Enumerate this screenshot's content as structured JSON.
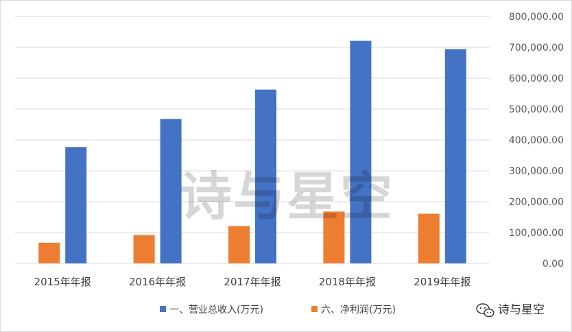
{
  "chart_data": {
    "type": "bar",
    "categories": [
      "2015年年报",
      "2016年年报",
      "2017年年报",
      "2018年年报",
      "2019年年报"
    ],
    "series": [
      {
        "name": "一、营业总收入(万元)",
        "color": "#4472C4",
        "values": [
          377000,
          468000,
          563000,
          721000,
          694000
        ]
      },
      {
        "name": "六、净利润(万元)",
        "color": "#ED7D31",
        "values": [
          67000,
          92000,
          121000,
          168000,
          161000
        ]
      }
    ],
    "ylim": [
      0,
      800000
    ],
    "yticks": [
      0,
      100000,
      200000,
      300000,
      400000,
      500000,
      600000,
      700000,
      800000
    ],
    "ytick_labels": [
      "0.00",
      "100,000.00",
      "200,000.00",
      "300,000.00",
      "400,000.00",
      "500,000.00",
      "600,000.00",
      "700,000.00",
      "800,000.00"
    ],
    "y_axis_side": "right",
    "grid": true,
    "legend_position": "bottom"
  },
  "watermark": {
    "text": "诗与星空",
    "badge_icon": "wechat-icon"
  }
}
